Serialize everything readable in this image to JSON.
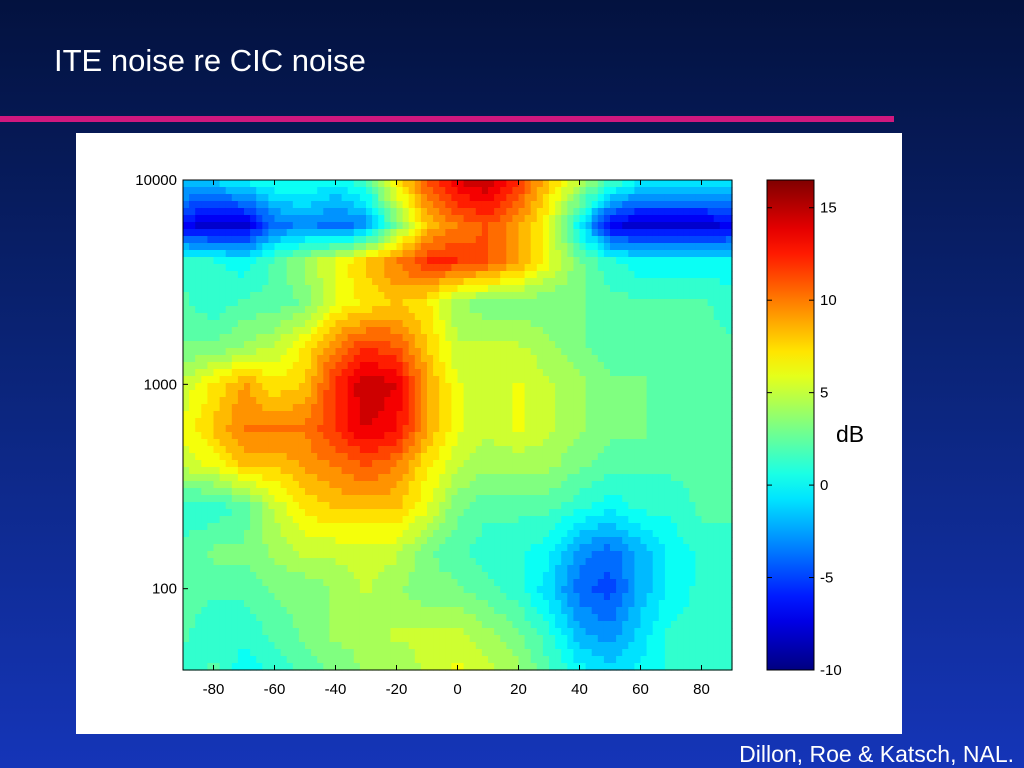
{
  "slide": {
    "title": "ITE noise re CIC noise",
    "credit": "Dillon, Roe & Katsch, NAL.",
    "accent_color": "#d0187e",
    "background_top": "#03123f",
    "background_bottom": "#1535b8"
  },
  "chart_data": {
    "type": "heatmap",
    "title": "",
    "xlabel": "",
    "ylabel": "",
    "x_ticks": [
      -80,
      -60,
      -40,
      -20,
      0,
      20,
      40,
      60,
      80
    ],
    "x_tick_labels": [
      "-80",
      "-60",
      "-40",
      "-20",
      "0",
      "20",
      "40",
      "60",
      "80"
    ],
    "xlim": [
      -90,
      90
    ],
    "y_scale": "log",
    "y_ticks": [
      100,
      1000,
      10000
    ],
    "y_tick_labels": [
      "100",
      "1000",
      "10000"
    ],
    "ylim": [
      40,
      10000
    ],
    "colorbar": {
      "label": "dB",
      "ticks": [
        -10,
        -5,
        0,
        5,
        10,
        15
      ],
      "tick_labels": [
        "-10",
        "-5",
        "0",
        "5",
        "10",
        "15"
      ],
      "range": [
        -10,
        16.5
      ],
      "colormap": "jet"
    },
    "x": [
      -90,
      -80,
      -70,
      -60,
      -50,
      -40,
      -30,
      -20,
      -10,
      0,
      10,
      20,
      30,
      40,
      50,
      60,
      70,
      80,
      90
    ],
    "y": [
      40,
      60,
      100,
      150,
      250,
      400,
      600,
      1000,
      1500,
      2500,
      4000,
      6000,
      10000
    ],
    "z": [
      [
        1,
        2,
        0,
        1,
        2,
        3,
        4,
        4,
        5,
        6,
        5,
        4,
        2,
        0,
        -1,
        0,
        1,
        1,
        1
      ],
      [
        2,
        1,
        1,
        2,
        3,
        4,
        4,
        5,
        5,
        5,
        4,
        3,
        1,
        -2,
        -3,
        -1,
        1,
        1,
        1
      ],
      [
        2,
        2,
        2,
        3,
        3,
        4,
        5,
        4,
        3,
        3,
        2,
        1,
        -1,
        -4,
        -5,
        -2,
        0,
        1,
        1
      ],
      [
        2,
        3,
        3,
        4,
        5,
        5,
        5,
        5,
        3,
        2,
        1,
        1,
        0,
        -3,
        -4,
        -2,
        0,
        1,
        1
      ],
      [
        1,
        1,
        2,
        5,
        7,
        8,
        8,
        8,
        6,
        3,
        2,
        2,
        2,
        1,
        0,
        1,
        1,
        2,
        2
      ],
      [
        5,
        6,
        8,
        8,
        9,
        10,
        11,
        10,
        7,
        5,
        4,
        4,
        4,
        3,
        2,
        2,
        2,
        2,
        2
      ],
      [
        6,
        8,
        10,
        10,
        10,
        12,
        14,
        13,
        9,
        6,
        5,
        6,
        5,
        4,
        3,
        3,
        2,
        2,
        2
      ],
      [
        5,
        7,
        9,
        7,
        8,
        12,
        15,
        14,
        9,
        6,
        5,
        6,
        5,
        4,
        3,
        3,
        2,
        2,
        2
      ],
      [
        3,
        3,
        4,
        5,
        7,
        10,
        12,
        11,
        8,
        5,
        5,
        5,
        4,
        3,
        2,
        2,
        2,
        2,
        2
      ],
      [
        2,
        1,
        2,
        2,
        3,
        6,
        7,
        8,
        7,
        4,
        3,
        3,
        3,
        3,
        2,
        2,
        2,
        2,
        1
      ],
      [
        1,
        1,
        0,
        2,
        4,
        6,
        8,
        10,
        12,
        12,
        11,
        9,
        6,
        3,
        1,
        0,
        0,
        0,
        0
      ],
      [
        -7,
        -8,
        -8,
        -4,
        -3,
        -4,
        -3,
        3,
        8,
        10,
        11,
        9,
        6,
        0,
        -7,
        -8,
        -8,
        -8,
        -7
      ],
      [
        -1,
        -1,
        0,
        1,
        1,
        0,
        2,
        7,
        11,
        14,
        15,
        12,
        8,
        5,
        2,
        0,
        0,
        0,
        0
      ]
    ]
  }
}
